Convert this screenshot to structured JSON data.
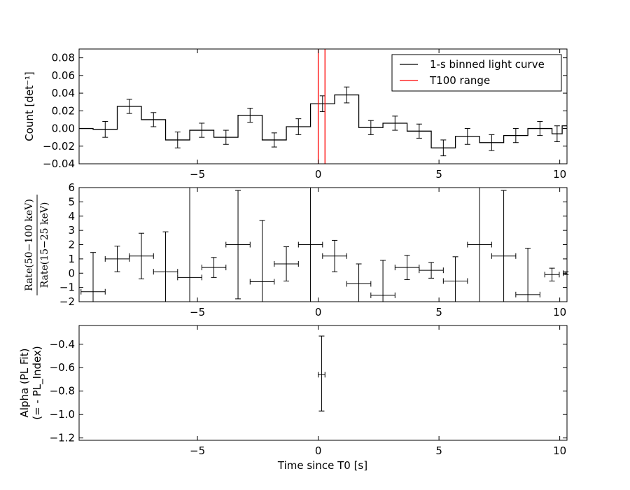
{
  "chart_data": [
    {
      "type": "line",
      "panel": "light-curve",
      "ylabel": "Count [det⁻¹]",
      "xlim": [
        -9.9,
        10.3
      ],
      "ylim": [
        -0.04,
        0.09
      ],
      "yticks": [
        -0.04,
        -0.02,
        0.0,
        0.02,
        0.04,
        0.06,
        0.08
      ],
      "ytick_labels": [
        "−0.04",
        "−0.02",
        "0.00",
        "0.02",
        "0.04",
        "0.06",
        "0.08"
      ],
      "xticks": [
        -5,
        0,
        5,
        10
      ],
      "xtick_labels": [
        "−5",
        "0",
        "5",
        "10"
      ],
      "legend_position": "top-right",
      "legend": [
        {
          "label": "1-s binned light curve",
          "color": "#000000"
        },
        {
          "label": "T100 range",
          "color": "#ff0000"
        }
      ],
      "series": [
        {
          "name": "1-s binned light curve",
          "color": "#000000",
          "bins": [
            {
              "x0": -9.9,
              "x1": -9.32,
              "y": 0.0
            },
            {
              "x0": -9.32,
              "x1": -8.32,
              "y": -0.001,
              "err": 0.009
            },
            {
              "x0": -8.32,
              "x1": -7.32,
              "y": 0.025,
              "err": 0.008
            },
            {
              "x0": -7.32,
              "x1": -6.32,
              "y": 0.01,
              "err": 0.008
            },
            {
              "x0": -6.32,
              "x1": -5.32,
              "y": -0.013,
              "err": 0.009
            },
            {
              "x0": -5.32,
              "x1": -4.32,
              "y": -0.002,
              "err": 0.008
            },
            {
              "x0": -4.32,
              "x1": -3.32,
              "y": -0.01,
              "err": 0.008
            },
            {
              "x0": -3.32,
              "x1": -2.32,
              "y": 0.015,
              "err": 0.008
            },
            {
              "x0": -2.32,
              "x1": -1.32,
              "y": -0.013,
              "err": 0.008
            },
            {
              "x0": -1.32,
              "x1": -0.32,
              "y": 0.002,
              "err": 0.009
            },
            {
              "x0": -0.32,
              "x1": 0.68,
              "y": 0.028,
              "err": 0.009
            },
            {
              "x0": 0.68,
              "x1": 1.68,
              "y": 0.038,
              "err": 0.009
            },
            {
              "x0": 1.68,
              "x1": 2.68,
              "y": 0.001,
              "err": 0.008
            },
            {
              "x0": 2.68,
              "x1": 3.68,
              "y": 0.006,
              "err": 0.008
            },
            {
              "x0": 3.68,
              "x1": 4.68,
              "y": -0.003,
              "err": 0.008
            },
            {
              "x0": 4.68,
              "x1": 5.68,
              "y": -0.022,
              "err": 0.009
            },
            {
              "x0": 5.68,
              "x1": 6.68,
              "y": -0.009,
              "err": 0.009
            },
            {
              "x0": 6.68,
              "x1": 7.68,
              "y": -0.016,
              "err": 0.009
            },
            {
              "x0": 7.68,
              "x1": 8.68,
              "y": -0.008,
              "err": 0.008
            },
            {
              "x0": 8.68,
              "x1": 9.68,
              "y": 0.0,
              "err": 0.008
            },
            {
              "x0": 9.68,
              "x1": 10.1,
              "y": -0.006,
              "err": 0.009
            },
            {
              "x0": 10.1,
              "x1": 10.3,
              "y": 0.003
            }
          ]
        },
        {
          "name": "T100 range",
          "color": "#ff0000",
          "vlines": [
            0.0,
            0.28
          ]
        }
      ]
    },
    {
      "type": "scatter",
      "panel": "hardness-ratio",
      "ylabel_numerator": "Rate(50−100 keV)",
      "ylabel_denominator": "Rate(15−25 keV)",
      "xlim": [
        -9.9,
        10.3
      ],
      "ylim": [
        -2,
        6
      ],
      "yticks": [
        -2,
        -1,
        0,
        1,
        2,
        3,
        4,
        5,
        6
      ],
      "ytick_labels": [
        "−2",
        "−1",
        "0",
        "1",
        "2",
        "3",
        "4",
        "5",
        "6"
      ],
      "xticks": [
        -5,
        0,
        5,
        10
      ],
      "xtick_labels": [
        "−5",
        "0",
        "5",
        "10"
      ],
      "series": [
        {
          "name": "",
          "color": "#000000",
          "points": [
            {
              "x": -9.32,
              "y": -1.3,
              "xerr": 0.5,
              "yerr": 2.75
            },
            {
              "x": -8.32,
              "y": 1.0,
              "xerr": 0.5,
              "yerr": 0.9
            },
            {
              "x": -7.32,
              "y": 1.2,
              "xerr": 0.5,
              "yerr": 1.6
            },
            {
              "x": -6.32,
              "y": 0.1,
              "xerr": 0.5,
              "yerr": 2.8
            },
            {
              "x": -5.32,
              "y": -0.3,
              "xerr": 0.5,
              "yerr": 7.0
            },
            {
              "x": -4.32,
              "y": 0.4,
              "xerr": 0.5,
              "yerr": 0.7
            },
            {
              "x": -3.32,
              "y": 2.0,
              "xerr": 0.5,
              "yerr": 3.8
            },
            {
              "x": -2.32,
              "y": -0.6,
              "xerr": 0.5,
              "yerr": 4.3
            },
            {
              "x": -1.32,
              "y": 0.65,
              "xerr": 0.5,
              "yerr": 1.2
            },
            {
              "x": -0.32,
              "y": 2.0,
              "xerr": 0.5,
              "yerr": 8.0
            },
            {
              "x": 0.68,
              "y": 1.2,
              "xerr": 0.5,
              "yerr": 1.1
            },
            {
              "x": 1.68,
              "y": -0.75,
              "xerr": 0.5,
              "yerr": 1.4
            },
            {
              "x": 2.68,
              "y": -1.55,
              "xerr": 0.5,
              "yerr": 2.45
            },
            {
              "x": 3.68,
              "y": 0.4,
              "xerr": 0.5,
              "yerr": 0.85
            },
            {
              "x": 4.68,
              "y": 0.2,
              "xerr": 0.5,
              "yerr": 0.55
            },
            {
              "x": 5.68,
              "y": -0.55,
              "xerr": 0.5,
              "yerr": 1.7
            },
            {
              "x": 6.68,
              "y": 2.0,
              "xerr": 0.5,
              "yerr": 8.0
            },
            {
              "x": 7.68,
              "y": 1.2,
              "xerr": 0.5,
              "yerr": 4.6
            },
            {
              "x": 8.68,
              "y": -1.5,
              "xerr": 0.5,
              "yerr": 3.25
            },
            {
              "x": 9.68,
              "y": -0.1,
              "xerr": 0.3,
              "yerr": 0.45
            },
            {
              "x": 10.25,
              "y": 0.0,
              "xerr": 0.1,
              "yerr": 0.1
            }
          ]
        }
      ]
    },
    {
      "type": "scatter",
      "panel": "alpha",
      "ylabel_line1": "Alpha (PL Fit)",
      "ylabel_line2": "(= - PL_Index)",
      "xlabel": "Time since T0 [s]",
      "xlim": [
        -9.9,
        10.3
      ],
      "ylim": [
        -1.22,
        -0.24
      ],
      "yticks": [
        -1.2,
        -1.0,
        -0.8,
        -0.6,
        -0.4
      ],
      "ytick_labels": [
        "−1.2",
        "−1.0",
        "−0.8",
        "−0.6",
        "−0.4"
      ],
      "xticks": [
        -5,
        0,
        5,
        10
      ],
      "xtick_labels": [
        "−5",
        "0",
        "5",
        "10"
      ],
      "series": [
        {
          "name": "",
          "color": "#000000",
          "points": [
            {
              "x": 0.14,
              "y": -0.66,
              "xerr": 0.14,
              "yerr_low": 0.31,
              "yerr_high": 0.33
            }
          ]
        }
      ]
    }
  ]
}
